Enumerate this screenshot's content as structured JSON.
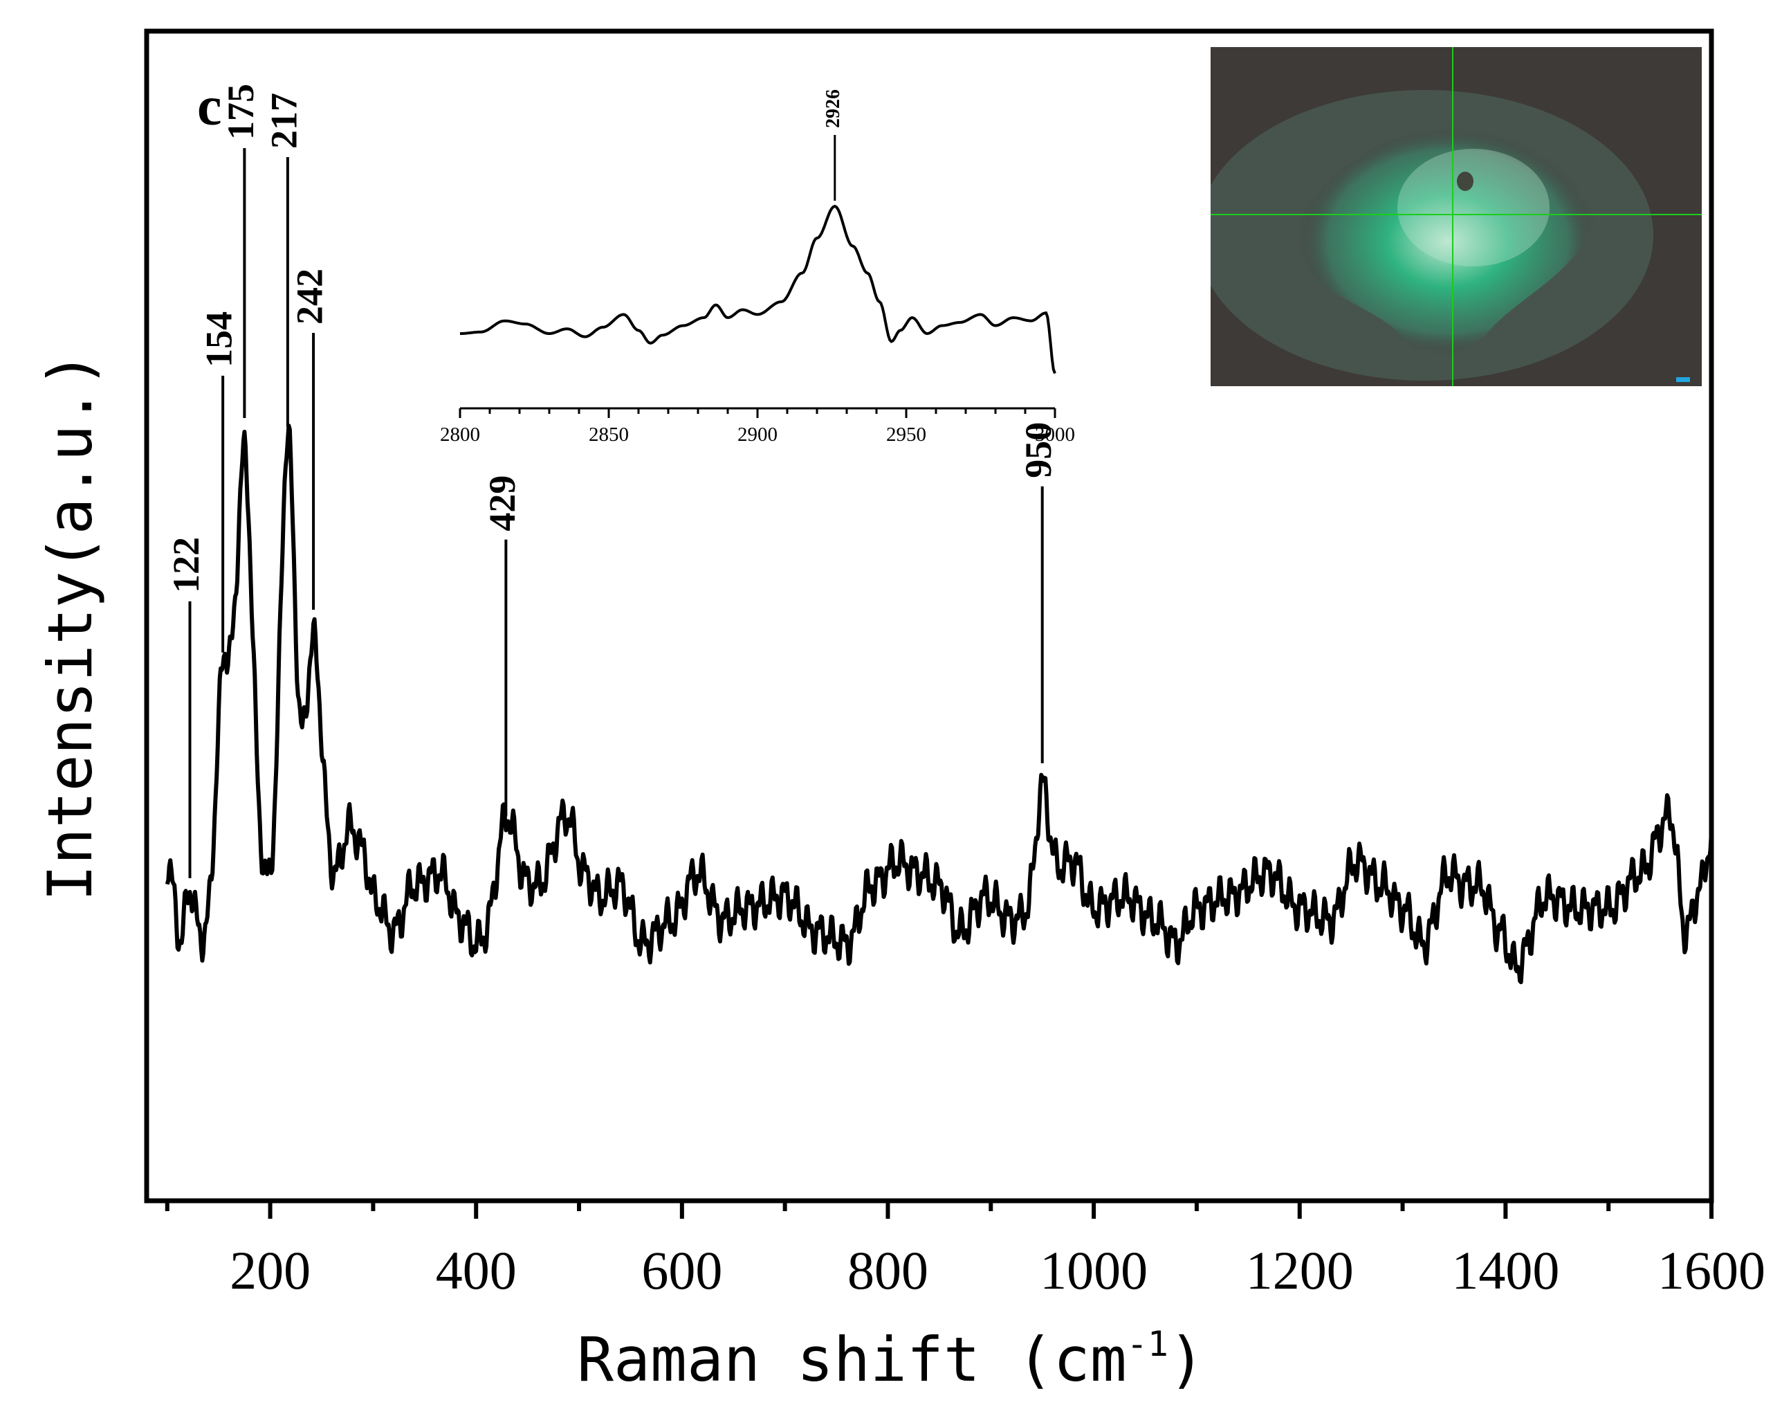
{
  "chart_data": {
    "type": "line",
    "panel_label": "c",
    "xlabel": "Raman shift (cm",
    "xlabel_sup": "-1",
    "xlabel_close": ")",
    "ylabel": "Intensity(a.u.)",
    "xlim": [
      80,
      1600
    ],
    "ylim": [
      0,
      1
    ],
    "y_ticks_shown": false,
    "grid": false,
    "x_ticks": [
      200,
      400,
      600,
      800,
      1000,
      1200,
      1400,
      1600
    ],
    "baseline": 0.25,
    "noise": [
      [
        100,
        0.04
      ],
      [
        115,
        -0.04
      ],
      [
        140,
        -0.03
      ],
      [
        165,
        0.02
      ],
      [
        190,
        0.01
      ],
      [
        260,
        0.02
      ],
      [
        278,
        0.07
      ],
      [
        290,
        0.05
      ],
      [
        300,
        0.01
      ],
      [
        320,
        -0.02
      ],
      [
        340,
        0.02
      ],
      [
        365,
        0.03
      ],
      [
        385,
        -0.01
      ],
      [
        400,
        -0.03
      ],
      [
        460,
        0.02
      ],
      [
        488,
        0.08
      ],
      [
        505,
        0.03
      ],
      [
        520,
        0.01
      ],
      [
        540,
        0.02
      ],
      [
        562,
        -0.03
      ],
      [
        590,
        -0.01
      ],
      [
        615,
        0.03
      ],
      [
        640,
        -0.01
      ],
      [
        660,
        0.0
      ],
      [
        700,
        0.01
      ],
      [
        730,
        -0.02
      ],
      [
        760,
        -0.03
      ],
      [
        785,
        0.02
      ],
      [
        810,
        0.04
      ],
      [
        830,
        0.03
      ],
      [
        850,
        0.02
      ],
      [
        870,
        -0.02
      ],
      [
        895,
        0.01
      ],
      [
        920,
        -0.01
      ],
      [
        980,
        0.04
      ],
      [
        1000,
        0.0
      ],
      [
        1030,
        0.01
      ],
      [
        1060,
        -0.01
      ],
      [
        1080,
        -0.03
      ],
      [
        1100,
        0.0
      ],
      [
        1130,
        0.01
      ],
      [
        1170,
        0.03
      ],
      [
        1200,
        0.0
      ],
      [
        1230,
        -0.01
      ],
      [
        1255,
        0.04
      ],
      [
        1280,
        0.02
      ],
      [
        1300,
        0.0
      ],
      [
        1320,
        -0.03
      ],
      [
        1345,
        0.03
      ],
      [
        1360,
        0.02
      ],
      [
        1375,
        0.02
      ],
      [
        1395,
        -0.02
      ],
      [
        1410,
        -0.05
      ],
      [
        1440,
        0.01
      ],
      [
        1470,
        0.0
      ],
      [
        1500,
        0.0
      ],
      [
        1530,
        0.03
      ],
      [
        1560,
        0.08
      ],
      [
        1575,
        -0.02
      ],
      [
        1590,
        0.02
      ],
      [
        1600,
        0.06
      ]
    ],
    "peaks": [
      {
        "label": "122",
        "x": 122,
        "height": 0.055,
        "width": 5
      },
      {
        "label": "154",
        "x": 154,
        "height": 0.2,
        "width": 7
      },
      {
        "label": "175",
        "x": 175,
        "height": 0.37,
        "width": 8
      },
      {
        "label": "217",
        "x": 217,
        "height": 0.39,
        "width": 7
      },
      {
        "label": "242",
        "x": 242,
        "height": 0.21,
        "width": 8
      },
      {
        "label": "429",
        "x": 429,
        "height": 0.085,
        "width": 9
      },
      {
        "label": "950",
        "x": 950,
        "height": 0.09,
        "width": 6
      }
    ],
    "inset": {
      "type": "line",
      "xlim": [
        2800,
        3000
      ],
      "x_ticks": [
        2800,
        2850,
        2900,
        2950,
        3000
      ],
      "ylim": [
        0,
        1
      ],
      "points": [
        [
          2800,
          0.0
        ],
        [
          2807,
          0.01
        ],
        [
          2815,
          0.08
        ],
        [
          2822,
          0.06
        ],
        [
          2830,
          0.0
        ],
        [
          2836,
          0.03
        ],
        [
          2842,
          -0.02
        ],
        [
          2848,
          0.04
        ],
        [
          2855,
          0.12
        ],
        [
          2860,
          0.02
        ],
        [
          2864,
          -0.06
        ],
        [
          2868,
          -0.01
        ],
        [
          2875,
          0.05
        ],
        [
          2882,
          0.1
        ],
        [
          2886,
          0.18
        ],
        [
          2890,
          0.1
        ],
        [
          2895,
          0.15
        ],
        [
          2900,
          0.12
        ],
        [
          2908,
          0.2
        ],
        [
          2915,
          0.38
        ],
        [
          2920,
          0.6
        ],
        [
          2926,
          0.8
        ],
        [
          2932,
          0.55
        ],
        [
          2937,
          0.38
        ],
        [
          2941,
          0.2
        ],
        [
          2945,
          -0.05
        ],
        [
          2948,
          0.02
        ],
        [
          2952,
          0.1
        ],
        [
          2957,
          0.0
        ],
        [
          2962,
          0.05
        ],
        [
          2968,
          0.07
        ],
        [
          2975,
          0.12
        ],
        [
          2980,
          0.05
        ],
        [
          2986,
          0.1
        ],
        [
          2992,
          0.08
        ],
        [
          2997,
          0.13
        ],
        [
          3000,
          -0.25
        ]
      ],
      "peaks": [
        {
          "label": "2926",
          "x": 2926
        }
      ]
    },
    "photo_colors": {
      "background": "#3e3a38",
      "mineral": "#2fb37f",
      "highlight": "#bfe8d2",
      "crosshair": "#1ccc1c",
      "scalebar": "#21a6e0"
    },
    "line_color": "#000000"
  }
}
